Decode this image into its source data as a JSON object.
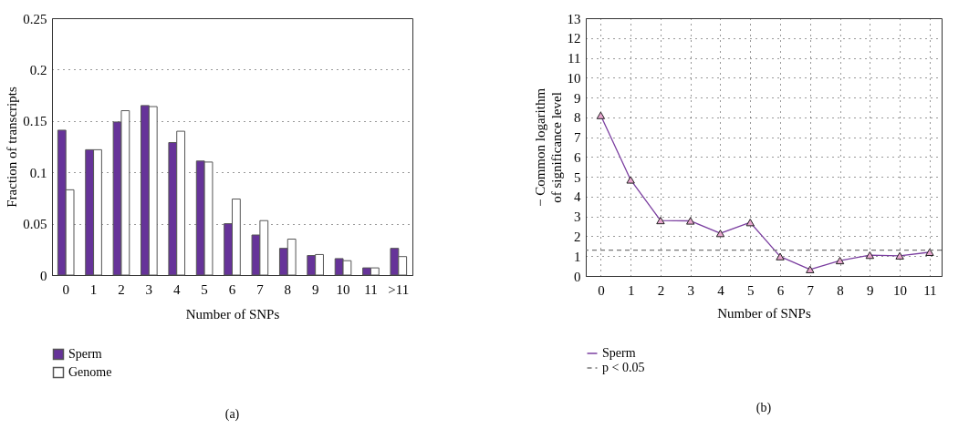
{
  "chart_data": [
    {
      "type": "bar",
      "xlabel": "Number of SNPs",
      "ylabel": "Fraction of transcripts",
      "categories": [
        "0",
        "1",
        "2",
        "3",
        "4",
        "5",
        "6",
        "7",
        "8",
        "9",
        "10",
        "11",
        ">11"
      ],
      "series": [
        {
          "name": "Sperm",
          "color": "#663399",
          "values": [
            0.141,
            0.122,
            0.149,
            0.165,
            0.129,
            0.111,
            0.05,
            0.039,
            0.026,
            0.019,
            0.016,
            0.007,
            0.026
          ]
        },
        {
          "name": "Genome",
          "color": "#ffffff",
          "values": [
            0.083,
            0.122,
            0.16,
            0.164,
            0.14,
            0.11,
            0.074,
            0.053,
            0.035,
            0.02,
            0.014,
            0.007,
            0.018
          ]
        }
      ],
      "ylim": [
        0,
        0.25
      ],
      "yticks": [
        0,
        0.05,
        0.1,
        0.15,
        0.2,
        0.25
      ],
      "grid": "y",
      "legend": "bottom left",
      "annotations": [
        "(a)"
      ]
    },
    {
      "type": "line",
      "xlabel": "Number of SNPs",
      "ylabel": "− Common logarithm of significance level",
      "x": [
        0,
        1,
        2,
        3,
        4,
        5,
        6,
        7,
        8,
        9,
        10,
        11
      ],
      "series": [
        {
          "name": "Sperm",
          "color": "#7b3fa0",
          "values": [
            8.1,
            4.85,
            2.8,
            2.78,
            2.15,
            2.7,
            0.98,
            0.33,
            0.78,
            1.05,
            1.02,
            1.2
          ]
        }
      ],
      "xlim": [
        -0.5,
        11.4
      ],
      "xticks": [
        0,
        1,
        2,
        3,
        4,
        5,
        6,
        7,
        8,
        9,
        10,
        11
      ],
      "ylim": [
        0,
        13
      ],
      "yticks": [
        0,
        1,
        2,
        3,
        4,
        5,
        6,
        7,
        8,
        9,
        10,
        11,
        12,
        13
      ],
      "grid": true,
      "marker": "triangle",
      "line_style": "solid",
      "legend": "bottom left",
      "ref_lines": [
        {
          "axis": "y",
          "value": 1.3,
          "label": "p < 0.05",
          "color": "#777777",
          "line_style": "dashed"
        }
      ],
      "annotations": [
        "(b)"
      ]
    }
  ]
}
